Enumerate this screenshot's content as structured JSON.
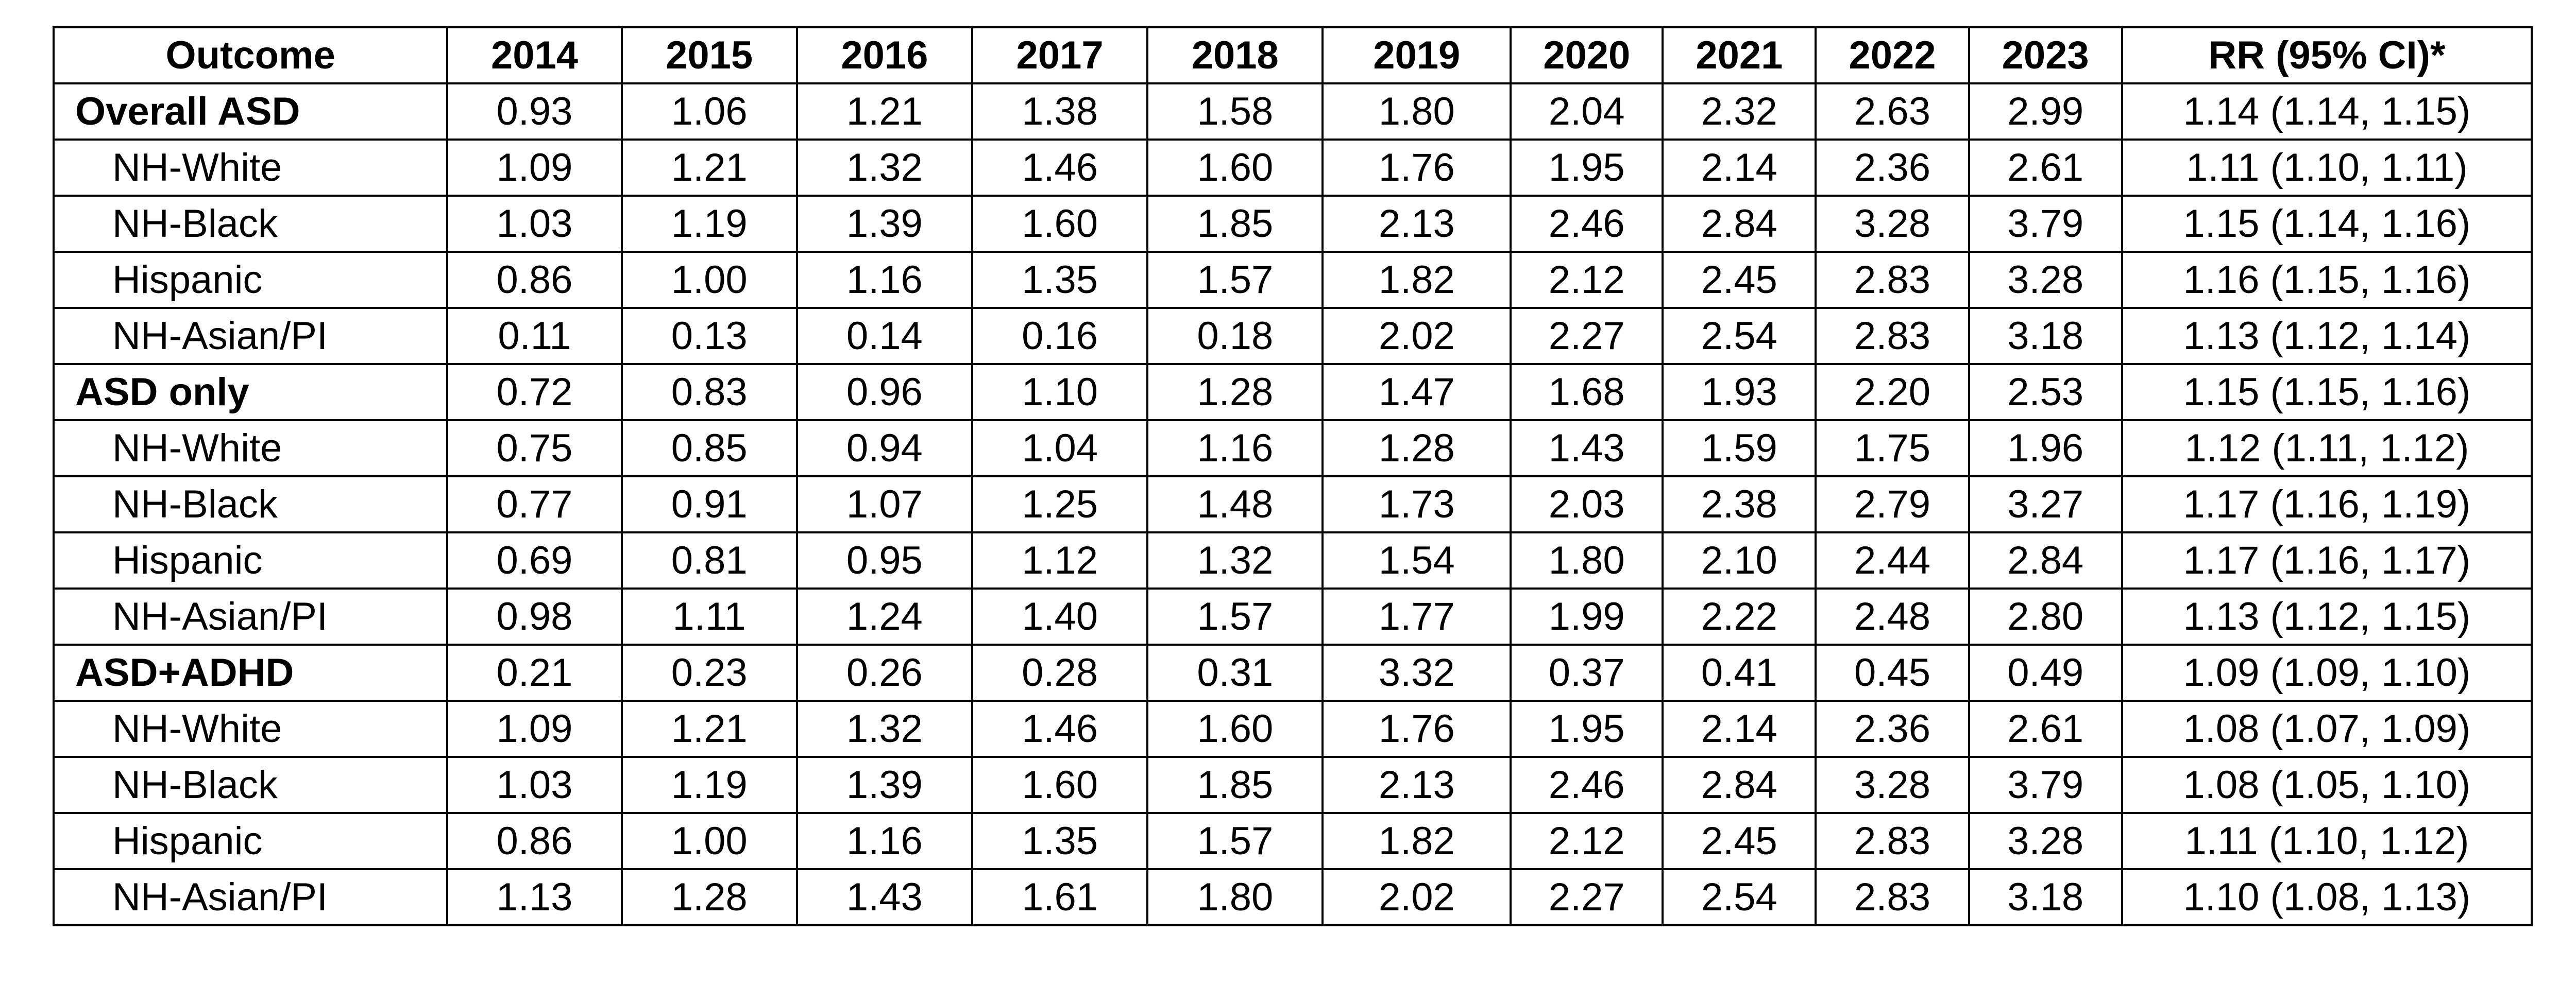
{
  "table": {
    "headers": [
      "Outcome",
      "2014",
      "2015",
      "2016",
      "2017",
      "2018",
      "2019",
      "2020",
      "2021",
      "2022",
      "2023",
      "RR (95% CI)*"
    ],
    "rows": [
      {
        "label": "Overall ASD",
        "group": true,
        "values": [
          "0.93",
          "1.06",
          "1.21",
          "1.38",
          "1.58",
          "1.80",
          "2.04",
          "2.32",
          "2.63",
          "2.99",
          "1.14 (1.14, 1.15)"
        ]
      },
      {
        "label": "NH-White",
        "group": false,
        "values": [
          "1.09",
          "1.21",
          "1.32",
          "1.46",
          "1.60",
          "1.76",
          "1.95",
          "2.14",
          "2.36",
          "2.61",
          "1.11 (1.10, 1.11)"
        ]
      },
      {
        "label": "NH-Black",
        "group": false,
        "values": [
          "1.03",
          "1.19",
          "1.39",
          "1.60",
          "1.85",
          "2.13",
          "2.46",
          "2.84",
          "3.28",
          "3.79",
          "1.15 (1.14, 1.16)"
        ]
      },
      {
        "label": "Hispanic",
        "group": false,
        "values": [
          "0.86",
          "1.00",
          "1.16",
          "1.35",
          "1.57",
          "1.82",
          "2.12",
          "2.45",
          "2.83",
          "3.28",
          "1.16 (1.15, 1.16)"
        ]
      },
      {
        "label": "NH-Asian/PI",
        "group": false,
        "values": [
          "0.11",
          "0.13",
          "0.14",
          "0.16",
          "0.18",
          "2.02",
          "2.27",
          "2.54",
          "2.83",
          "3.18",
          "1.13 (1.12, 1.14)"
        ]
      },
      {
        "label": "ASD only",
        "group": true,
        "values": [
          "0.72",
          "0.83",
          "0.96",
          "1.10",
          "1.28",
          "1.47",
          "1.68",
          "1.93",
          "2.20",
          "2.53",
          "1.15 (1.15, 1.16)"
        ]
      },
      {
        "label": "NH-White",
        "group": false,
        "values": [
          "0.75",
          "0.85",
          "0.94",
          "1.04",
          "1.16",
          "1.28",
          "1.43",
          "1.59",
          "1.75",
          "1.96",
          "1.12 (1.11, 1.12)"
        ]
      },
      {
        "label": "NH-Black",
        "group": false,
        "values": [
          "0.77",
          "0.91",
          "1.07",
          "1.25",
          "1.48",
          "1.73",
          "2.03",
          "2.38",
          "2.79",
          "3.27",
          "1.17 (1.16, 1.19)"
        ]
      },
      {
        "label": "Hispanic",
        "group": false,
        "values": [
          "0.69",
          "0.81",
          "0.95",
          "1.12",
          "1.32",
          "1.54",
          "1.80",
          "2.10",
          "2.44",
          "2.84",
          "1.17 (1.16, 1.17)"
        ]
      },
      {
        "label": "NH-Asian/PI",
        "group": false,
        "values": [
          "0.98",
          "1.11",
          "1.24",
          "1.40",
          "1.57",
          "1.77",
          "1.99",
          "2.22",
          "2.48",
          "2.80",
          "1.13 (1.12, 1.15)"
        ]
      },
      {
        "label": "ASD+ADHD",
        "group": true,
        "values": [
          "0.21",
          "0.23",
          "0.26",
          "0.28",
          "0.31",
          "3.32",
          "0.37",
          "0.41",
          "0.45",
          "0.49",
          "1.09 (1.09, 1.10)"
        ]
      },
      {
        "label": "NH-White",
        "group": false,
        "values": [
          "1.09",
          "1.21",
          "1.32",
          "1.46",
          "1.60",
          "1.76",
          "1.95",
          "2.14",
          "2.36",
          "2.61",
          "1.08 (1.07, 1.09)"
        ]
      },
      {
        "label": "NH-Black",
        "group": false,
        "values": [
          "1.03",
          "1.19",
          "1.39",
          "1.60",
          "1.85",
          "2.13",
          "2.46",
          "2.84",
          "3.28",
          "3.79",
          "1.08 (1.05, 1.10)"
        ]
      },
      {
        "label": "Hispanic",
        "group": false,
        "values": [
          "0.86",
          "1.00",
          "1.16",
          "1.35",
          "1.57",
          "1.82",
          "2.12",
          "2.45",
          "2.83",
          "3.28",
          "1.11 (1.10, 1.12)"
        ]
      },
      {
        "label": "NH-Asian/PI",
        "group": false,
        "values": [
          "1.13",
          "1.28",
          "1.43",
          "1.61",
          "1.80",
          "2.02",
          "2.27",
          "2.54",
          "2.83",
          "3.18",
          "1.10 (1.08, 1.13)"
        ]
      }
    ]
  }
}
